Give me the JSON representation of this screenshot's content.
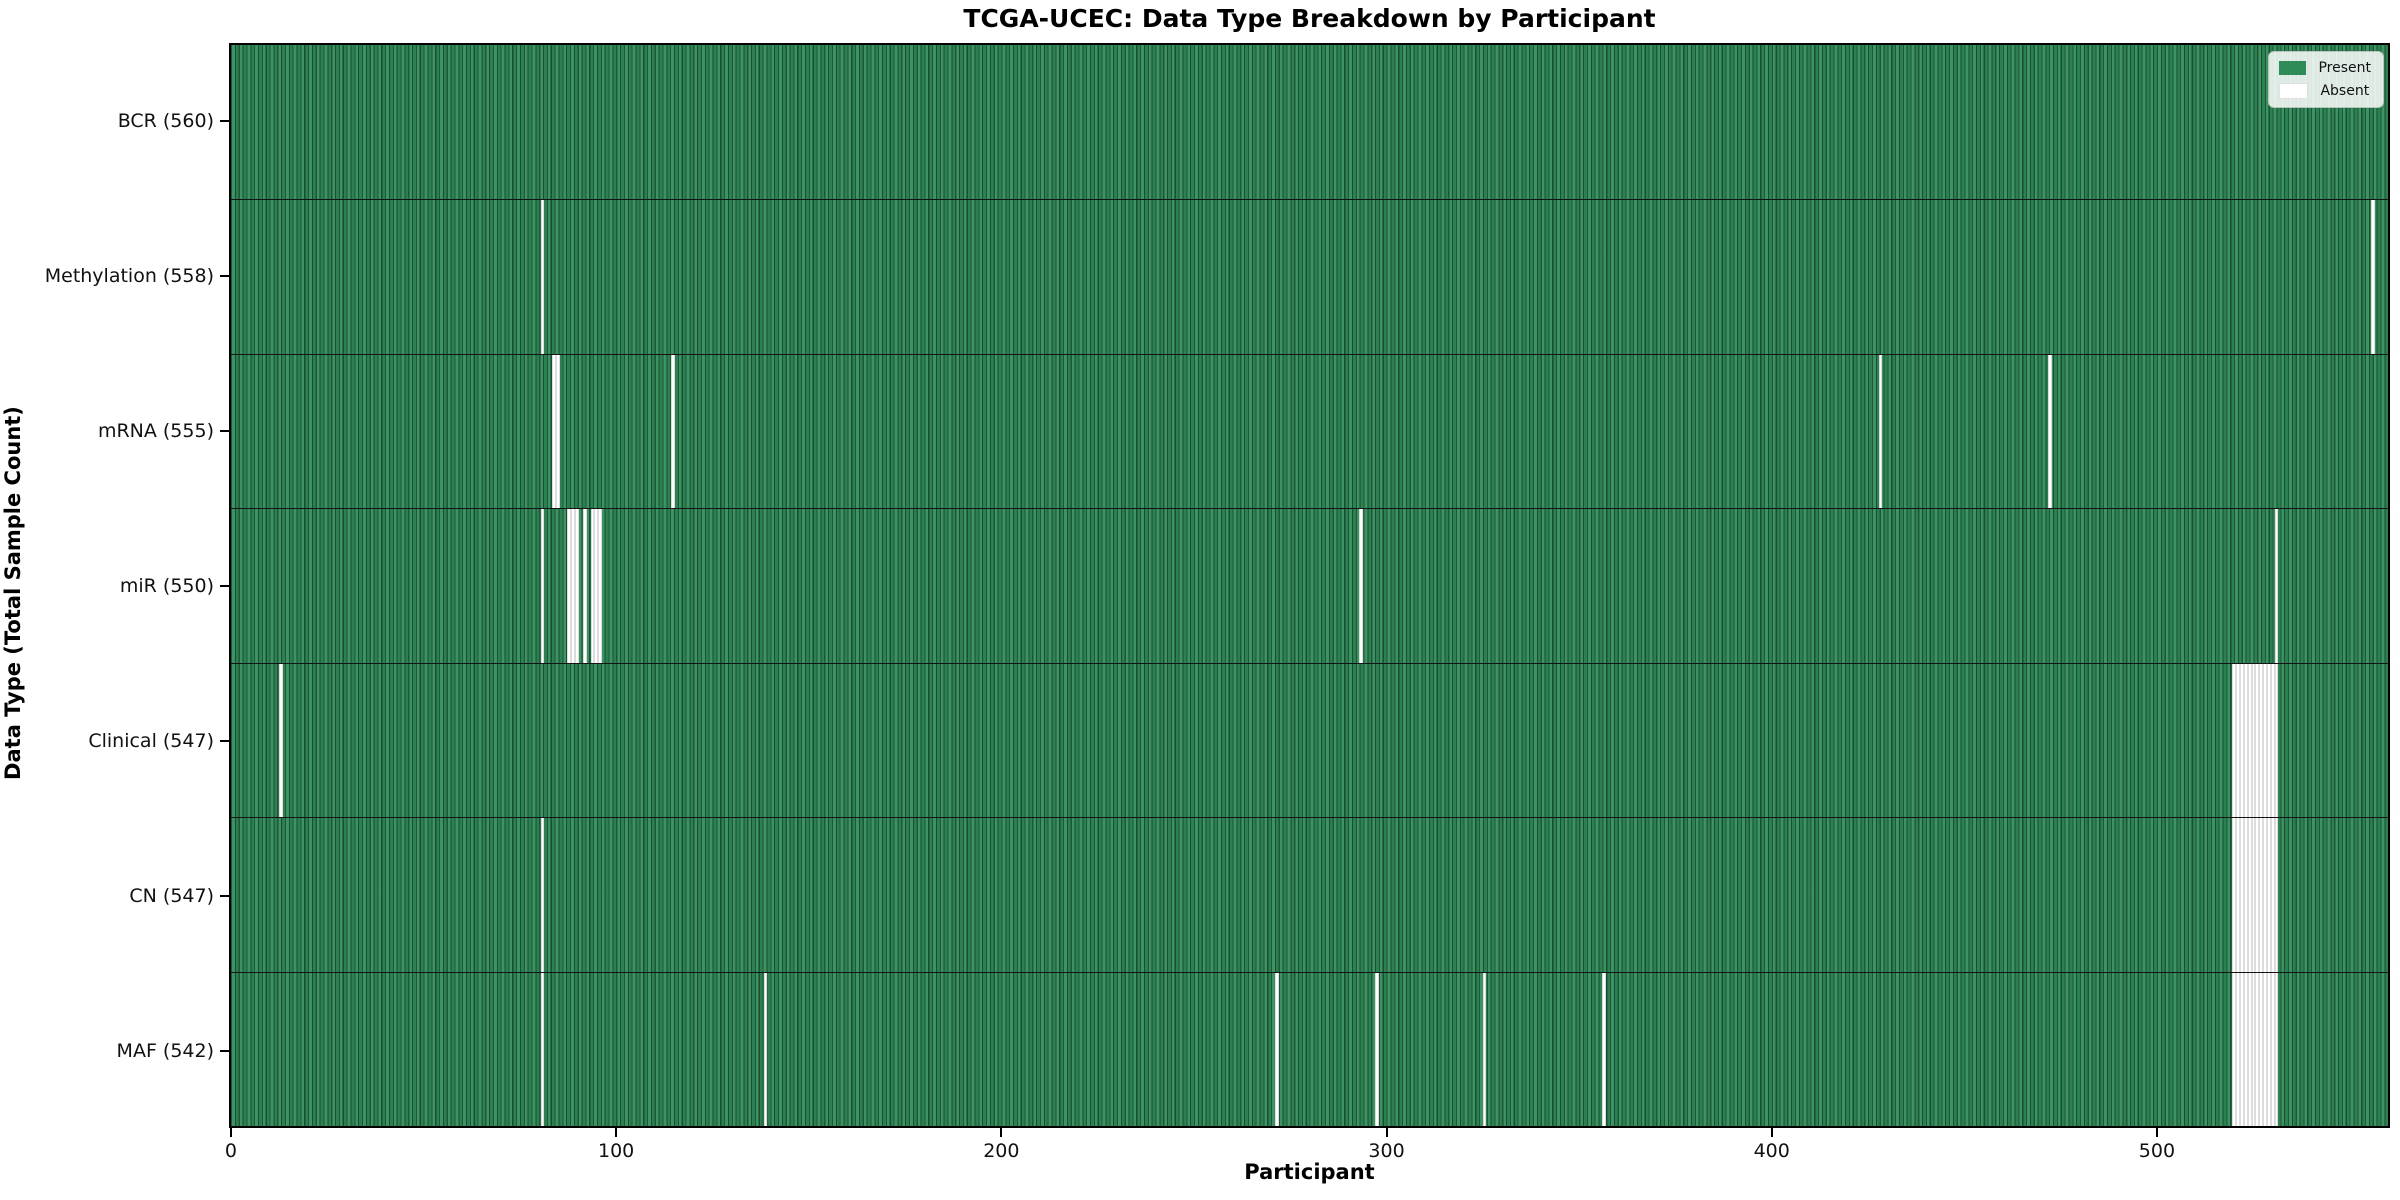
{
  "title": "TCGA-UCEC: Data Type Breakdown by Participant",
  "xlabel": "Participant",
  "ylabel": "Data Type (Total Sample Count)",
  "legend": {
    "present_label": "Present",
    "absent_label": "Absent",
    "position": "upper right"
  },
  "colors": {
    "present": "#2e8b57",
    "absent": "#ffffff",
    "bar_edge": "#17432a",
    "row_divider": "#141414",
    "axis": "#000000"
  },
  "chart_data": {
    "type": "heatmap",
    "title": "TCGA-UCEC: Data Type Breakdown by Participant",
    "xlabel": "Participant",
    "ylabel": "Data Type (Total Sample Count)",
    "n_participants": 560,
    "xlim": [
      -0.5,
      560.5
    ],
    "x_ticks": [
      0,
      100,
      200,
      300,
      400,
      500
    ],
    "grid": false,
    "legend_position": "upper right",
    "legend_entries": [
      "Present",
      "Absent"
    ],
    "rows": [
      {
        "label": "BCR (560)",
        "data_type": "BCR",
        "present_count": 560,
        "absent_participants": []
      },
      {
        "label": "Methylation (558)",
        "data_type": "Methylation",
        "present_count": 558,
        "absent_participants": [
          80,
          556
        ]
      },
      {
        "label": "mRNA (555)",
        "data_type": "mRNA",
        "present_count": 555,
        "absent_participants": [
          83,
          84,
          114,
          428,
          472
        ]
      },
      {
        "label": "miR (550)",
        "data_type": "miR",
        "present_count": 550,
        "absent_participants": [
          80,
          87,
          88,
          89,
          91,
          93,
          94,
          95,
          293,
          531
        ]
      },
      {
        "label": "Clinical (547)",
        "data_type": "Clinical",
        "present_count": 547,
        "absent_participants": [
          12,
          520,
          521,
          522,
          523,
          524,
          525,
          526,
          527,
          528,
          529,
          530,
          531
        ]
      },
      {
        "label": "CN (547)",
        "data_type": "CN",
        "present_count": 547,
        "absent_participants": [
          80,
          520,
          521,
          522,
          523,
          524,
          525,
          526,
          527,
          528,
          529,
          530,
          531
        ]
      },
      {
        "label": "MAF (542)",
        "data_type": "MAF",
        "present_count": 542,
        "absent_participants": [
          80,
          138,
          271,
          297,
          325,
          356,
          520,
          521,
          522,
          523,
          524,
          525,
          526,
          527,
          528,
          529,
          530,
          531
        ]
      }
    ]
  }
}
